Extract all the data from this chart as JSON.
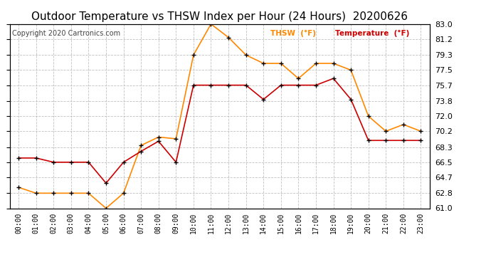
{
  "title": "Outdoor Temperature vs THSW Index per Hour (24 Hours)  20200626",
  "copyright": "Copyright 2020 Cartronics.com",
  "hours": [
    "00:00",
    "01:00",
    "02:00",
    "03:00",
    "04:00",
    "05:00",
    "06:00",
    "07:00",
    "08:00",
    "09:00",
    "10:00",
    "11:00",
    "12:00",
    "13:00",
    "14:00",
    "15:00",
    "16:00",
    "17:00",
    "18:00",
    "19:00",
    "20:00",
    "21:00",
    "22:00",
    "23:00"
  ],
  "temperature": [
    67.0,
    67.0,
    66.5,
    66.5,
    66.5,
    64.0,
    66.5,
    67.8,
    69.0,
    66.5,
    75.7,
    75.7,
    75.7,
    75.7,
    74.0,
    75.7,
    75.7,
    75.7,
    76.5,
    74.0,
    69.1,
    69.1,
    69.1,
    69.1
  ],
  "thsw": [
    63.5,
    62.8,
    62.8,
    62.8,
    62.8,
    61.0,
    62.8,
    68.5,
    69.5,
    69.3,
    79.3,
    83.0,
    81.4,
    79.3,
    78.3,
    78.3,
    76.5,
    78.3,
    78.3,
    77.5,
    72.0,
    70.2,
    71.0,
    70.2
  ],
  "temp_color": "#cc0000",
  "thsw_color": "#ff8800",
  "marker": "+",
  "marker_color": "#000000",
  "ylim": [
    61.0,
    83.0
  ],
  "yticks": [
    61.0,
    62.8,
    64.7,
    66.5,
    68.3,
    70.2,
    72.0,
    73.8,
    75.7,
    77.5,
    79.3,
    81.2,
    83.0
  ],
  "background_color": "#ffffff",
  "grid_color": "#c0c0c0",
  "title_fontsize": 11,
  "legend_thsw": "THSW  (°F)",
  "legend_temp": "Temperature  (°F)"
}
